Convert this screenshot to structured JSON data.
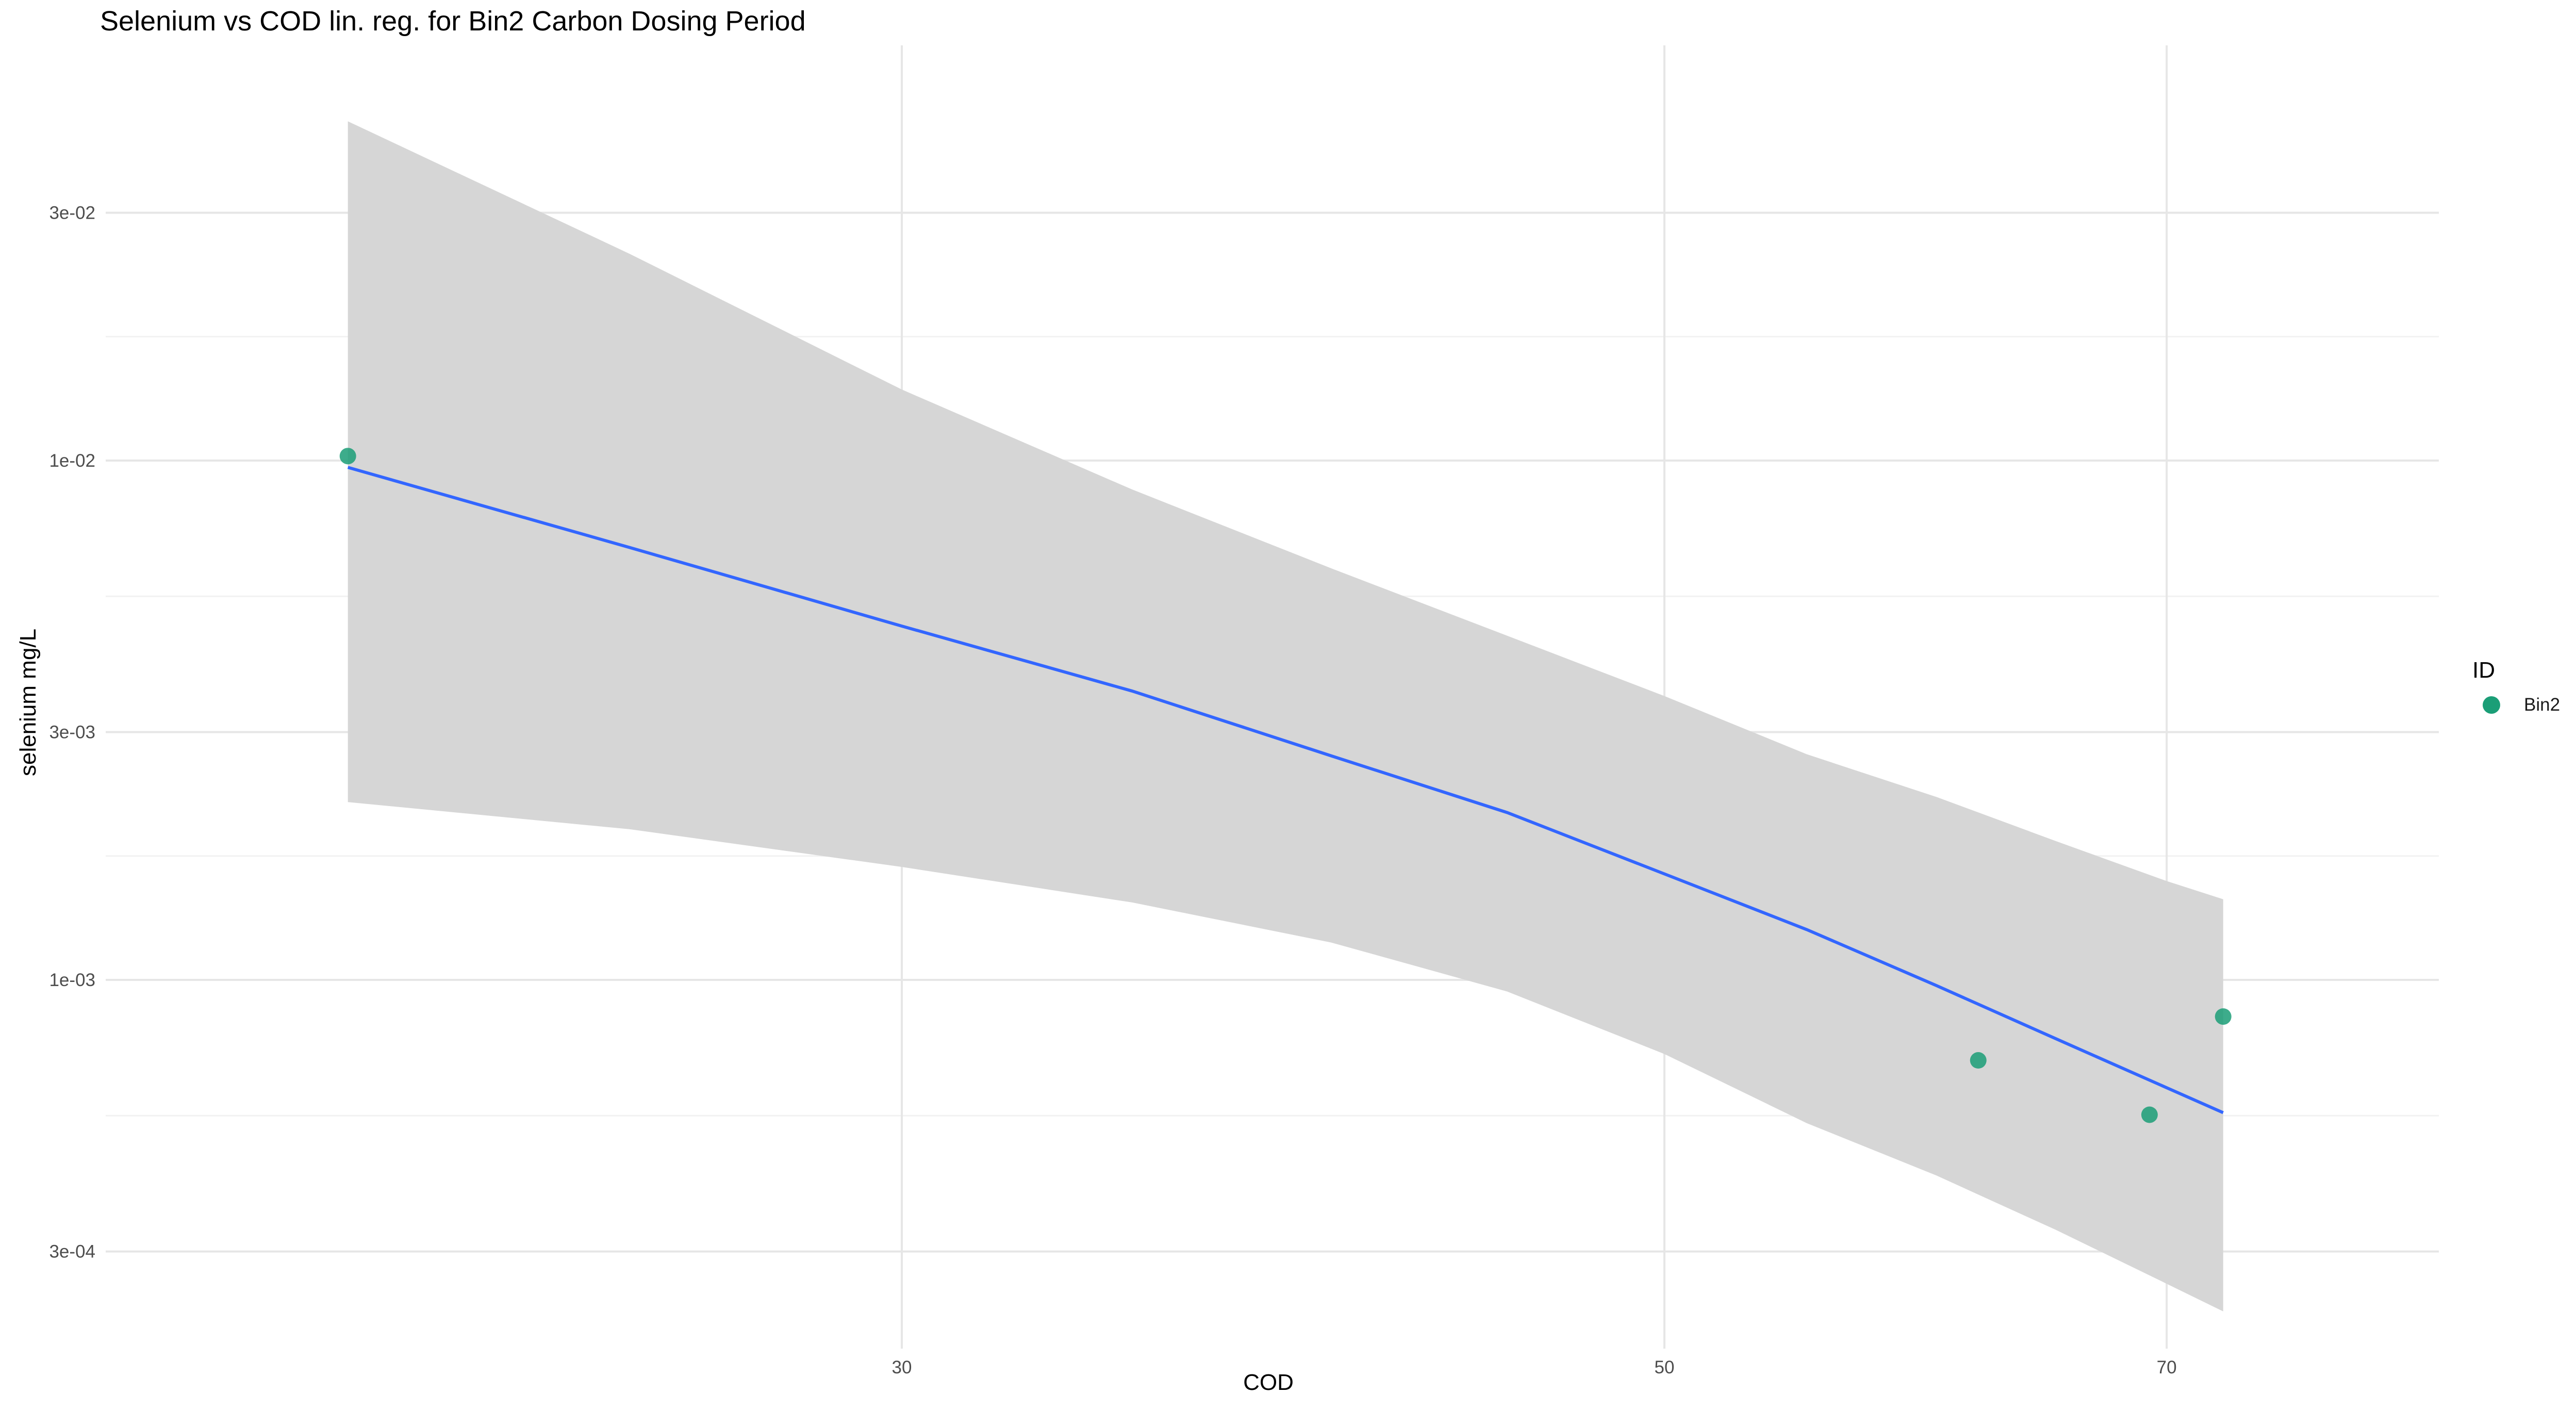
{
  "chart_data": {
    "type": "scatter",
    "title": "Selenium vs COD lin. reg. for Bin2 Carbon Dosing Period",
    "xlabel": "COD",
    "ylabel": "selenium mg/L",
    "x_scale": "log10",
    "y_scale": "log10",
    "xlim": [
      17.6,
      84
    ],
    "ylim": [
      0.000195,
      0.063
    ],
    "x_ticks": [
      30,
      50,
      70
    ],
    "x_tick_labels": [
      "30",
      "50",
      "70"
    ],
    "y_ticks": [
      0.0003,
      0.001,
      0.003,
      0.01,
      0.03
    ],
    "y_tick_labels": [
      "3e-04",
      "1e-03",
      "3e-03",
      "1e-02",
      "3e-02"
    ],
    "grid": true,
    "legend": {
      "title": "ID",
      "position": "right",
      "entries": [
        {
          "label": "Bin2",
          "color": "#1b9e77"
        }
      ]
    },
    "series": [
      {
        "name": "Bin2",
        "color": "#1b9e77",
        "points": [
          {
            "x": 20.7,
            "y": 0.0102
          },
          {
            "x": 61.7,
            "y": 0.0007
          },
          {
            "x": 69.2,
            "y": 0.00055
          },
          {
            "x": 72.7,
            "y": 0.00085
          }
        ]
      }
    ],
    "regression": {
      "method": "lm",
      "color": "#3366ff",
      "ribbon_color": "#d6d6d6",
      "fit": [
        {
          "x": 20.7,
          "y": 0.0097,
          "ymin": 0.0022,
          "ymax": 0.045
        },
        {
          "x": 25,
          "y": 0.0068,
          "ymin": 0.00195,
          "ymax": 0.025
        },
        {
          "x": 30,
          "y": 0.0048,
          "ymin": 0.00165,
          "ymax": 0.0137
        },
        {
          "x": 35,
          "y": 0.0036,
          "ymin": 0.00141,
          "ymax": 0.0088
        },
        {
          "x": 40,
          "y": 0.0027,
          "ymin": 0.00118,
          "ymax": 0.0062
        },
        {
          "x": 45,
          "y": 0.0021,
          "ymin": 0.00095,
          "ymax": 0.0046
        },
        {
          "x": 50,
          "y": 0.0016,
          "ymin": 0.00072,
          "ymax": 0.00352
        },
        {
          "x": 55,
          "y": 0.00125,
          "ymin": 0.00053,
          "ymax": 0.00272
        },
        {
          "x": 60,
          "y": 0.000975,
          "ymin": 0.00042,
          "ymax": 0.00225
        },
        {
          "x": 65,
          "y": 0.00077,
          "ymin": 0.00033,
          "ymax": 0.00185
        },
        {
          "x": 70,
          "y": 0.00062,
          "ymin": 0.00026,
          "ymax": 0.00155
        },
        {
          "x": 72.7,
          "y": 0.000555,
          "ymin": 0.00023,
          "ymax": 0.00143
        }
      ]
    }
  }
}
